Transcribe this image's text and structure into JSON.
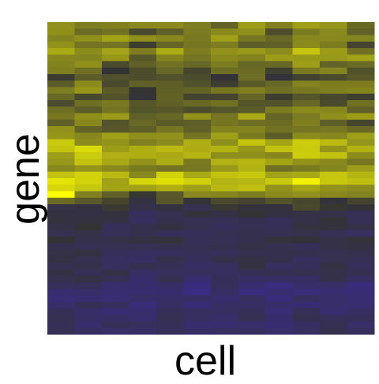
{
  "chart_data": {
    "type": "heatmap",
    "title": "",
    "xlabel": "cell",
    "ylabel": "gene",
    "n_cells": 12,
    "n_genes": 48,
    "color_scale": {
      "low": "#3b2a8f",
      "mid": "#333333",
      "high": "#ffff00"
    },
    "value_range": [
      -1,
      1
    ],
    "row_profile": [
      0.35,
      0.3,
      0.42,
      0.25,
      0.5,
      0.45,
      0.3,
      0.18,
      0.1,
      0.22,
      0.28,
      0.15,
      0.2,
      0.3,
      0.38,
      0.25,
      0.32,
      0.4,
      0.52,
      0.6,
      0.55,
      0.5,
      0.45,
      0.65,
      0.72,
      0.58,
      0.3,
      0.05,
      -0.12,
      -0.18,
      -0.22,
      -0.25,
      -0.28,
      -0.22,
      -0.3,
      -0.35,
      -0.4,
      -0.32,
      -0.38,
      -0.45,
      -0.6,
      -0.65,
      -0.62,
      -0.58,
      -0.55,
      -0.5,
      -0.52,
      -0.48
    ],
    "col_profile": [
      0.05,
      0.08,
      -0.02,
      -0.1,
      0.02,
      -0.05,
      0.0,
      0.03,
      -0.04,
      0.06,
      0.04,
      -0.03
    ],
    "highlight": {
      "row": 26,
      "col": 0,
      "value": 1.0
    }
  }
}
